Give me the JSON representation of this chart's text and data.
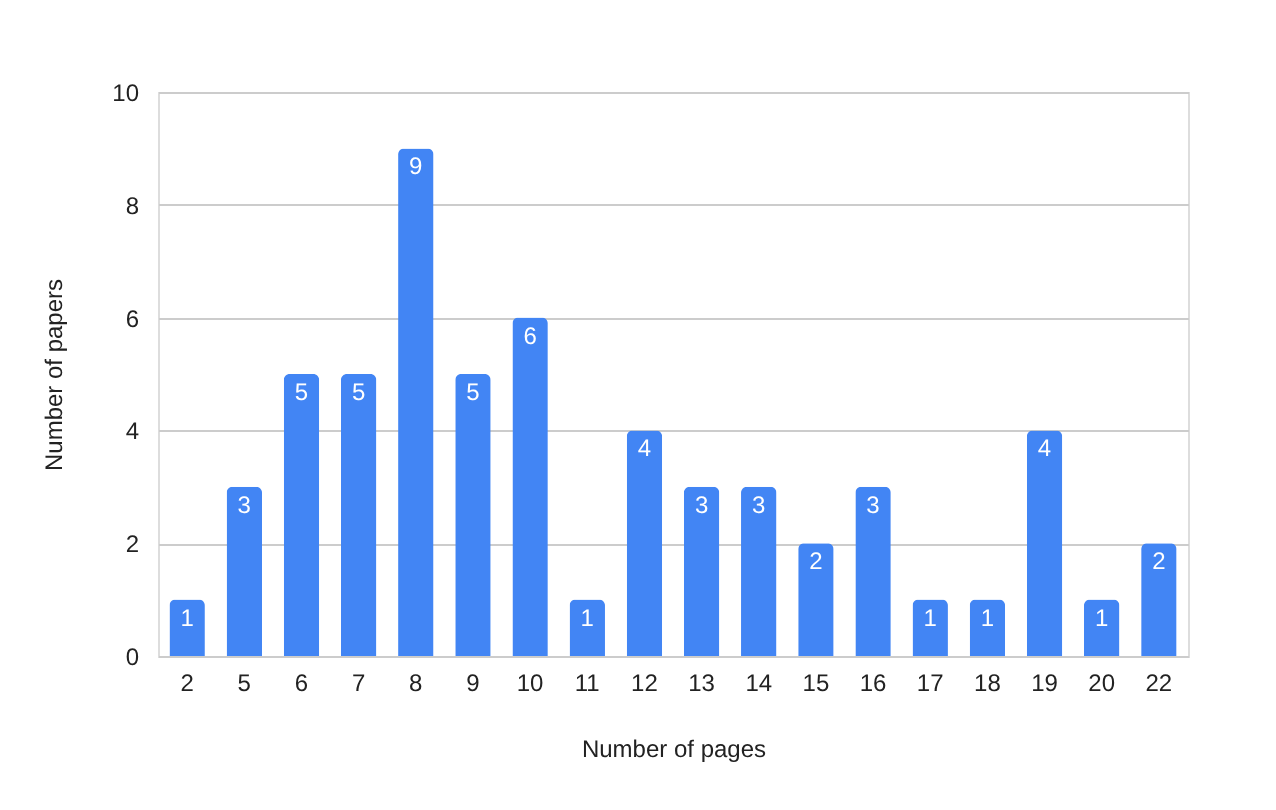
{
  "chart_data": {
    "type": "bar",
    "xlabel": "Number of pages",
    "ylabel": "Number of papers",
    "categories": [
      "2",
      "5",
      "6",
      "7",
      "8",
      "9",
      "10",
      "11",
      "12",
      "13",
      "14",
      "15",
      "16",
      "17",
      "18",
      "19",
      "20",
      "22"
    ],
    "values": [
      1,
      3,
      5,
      5,
      9,
      5,
      6,
      1,
      4,
      3,
      3,
      2,
      3,
      1,
      1,
      4,
      1,
      2
    ],
    "color": "#4285f4",
    "ylim": [
      0,
      10
    ],
    "yticks": [
      0,
      2,
      4,
      6,
      8,
      10
    ],
    "grid": "y",
    "data_labels": true
  }
}
